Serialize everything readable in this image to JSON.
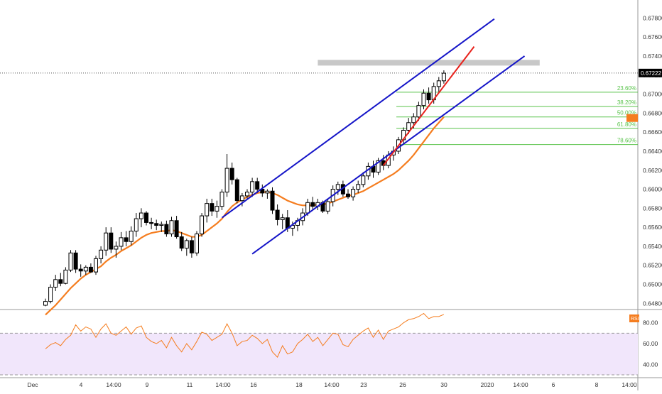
{
  "price_axis": {
    "ticks": [
      "0.67800",
      "0.67600",
      "0.67400",
      "0.67200",
      "0.67000",
      "0.66800",
      "0.66600",
      "0.66400",
      "0.66200",
      "0.66000",
      "0.65800",
      "0.65600",
      "0.65400",
      "0.65200",
      "0.65000",
      "0.64800"
    ],
    "current_price": "0.67222",
    "current_price_value": 0.67222
  },
  "rsi_panel": {
    "badge": "RSI",
    "ticks": [
      "80.00",
      "60.00",
      "40.00"
    ],
    "band_upper": 70,
    "band_lower": 30
  },
  "time_axis": {
    "labels": [
      "Dec",
      "4",
      "14:00",
      "9",
      "11",
      "14:00",
      "16",
      "18",
      "14:00",
      "23",
      "26",
      "30",
      "2020",
      "14:00",
      "6",
      "8",
      "14:00"
    ]
  },
  "fib_levels": [
    {
      "label": "23.60%",
      "value": 0.6702
    },
    {
      "label": "38.20%",
      "value": 0.6687
    },
    {
      "label": "50.00%",
      "value": 0.6676
    },
    {
      "label": "61.80%",
      "value": 0.6664
    },
    {
      "label": "78.60%",
      "value": 0.6647
    }
  ],
  "colors": {
    "channel": "#1515c8",
    "steep_trend": "#e8221c",
    "moving_average": "#f57d1f",
    "rsi_line": "#f57d1f",
    "rsi_band_fill": "#f1e6fb",
    "fib_line": "#58c34a",
    "resistance_zone": "#c8c8c8",
    "candle": "#000000",
    "price_label_bg": "#000000",
    "rsi_badge_bg": "#f57d1f"
  },
  "chart_data": {
    "type": "candlestick",
    "price_ylim": [
      0.6478,
      0.679
    ],
    "rsi_ylim": [
      30,
      90
    ],
    "candles": [
      [
        0.6478,
        0.6485,
        0.6477,
        0.6482
      ],
      [
        0.6482,
        0.65,
        0.648,
        0.6497
      ],
      [
        0.6497,
        0.651,
        0.6493,
        0.6505
      ],
      [
        0.6505,
        0.6512,
        0.6498,
        0.6501
      ],
      [
        0.6501,
        0.6518,
        0.65,
        0.6515
      ],
      [
        0.6515,
        0.6536,
        0.6513,
        0.6533
      ],
      [
        0.6533,
        0.6536,
        0.6512,
        0.6516
      ],
      [
        0.6516,
        0.6521,
        0.6508,
        0.6514
      ],
      [
        0.6514,
        0.652,
        0.651,
        0.6518
      ],
      [
        0.6518,
        0.6522,
        0.6512,
        0.6513
      ],
      [
        0.6513,
        0.653,
        0.651,
        0.6527
      ],
      [
        0.6527,
        0.654,
        0.6522,
        0.6536
      ],
      [
        0.6536,
        0.656,
        0.653,
        0.6554
      ],
      [
        0.6554,
        0.656,
        0.6533,
        0.6537
      ],
      [
        0.6537,
        0.6545,
        0.6528,
        0.654
      ],
      [
        0.654,
        0.6555,
        0.6536,
        0.6549
      ],
      [
        0.6549,
        0.6556,
        0.654,
        0.6545
      ],
      [
        0.6545,
        0.6561,
        0.6541,
        0.6556
      ],
      [
        0.6556,
        0.6575,
        0.655,
        0.6569
      ],
      [
        0.6569,
        0.658,
        0.656,
        0.6575
      ],
      [
        0.6575,
        0.6577,
        0.6562,
        0.6565
      ],
      [
        0.6565,
        0.657,
        0.6558,
        0.6564
      ],
      [
        0.6564,
        0.6568,
        0.6557,
        0.6562
      ],
      [
        0.6562,
        0.6566,
        0.6555,
        0.6563
      ],
      [
        0.6563,
        0.6567,
        0.655,
        0.6553
      ],
      [
        0.6553,
        0.6571,
        0.655,
        0.6567
      ],
      [
        0.6567,
        0.6572,
        0.6548,
        0.655
      ],
      [
        0.655,
        0.6555,
        0.6535,
        0.6538
      ],
      [
        0.6538,
        0.6548,
        0.653,
        0.6546
      ],
      [
        0.6546,
        0.655,
        0.6528,
        0.6533
      ],
      [
        0.6533,
        0.6556,
        0.653,
        0.6553
      ],
      [
        0.6553,
        0.6575,
        0.655,
        0.6572
      ],
      [
        0.6572,
        0.659,
        0.6565,
        0.6585
      ],
      [
        0.6585,
        0.659,
        0.6572,
        0.6577
      ],
      [
        0.6577,
        0.6588,
        0.657,
        0.6582
      ],
      [
        0.6582,
        0.66,
        0.6578,
        0.6597
      ],
      [
        0.6597,
        0.6637,
        0.6592,
        0.6622
      ],
      [
        0.6622,
        0.6628,
        0.6605,
        0.661
      ],
      [
        0.661,
        0.6612,
        0.6585,
        0.6588
      ],
      [
        0.6588,
        0.6596,
        0.6582,
        0.6593
      ],
      [
        0.6593,
        0.66,
        0.659,
        0.6597
      ],
      [
        0.6597,
        0.6612,
        0.6592,
        0.6608
      ],
      [
        0.6608,
        0.6612,
        0.6596,
        0.66
      ],
      [
        0.66,
        0.6605,
        0.6592,
        0.6596
      ],
      [
        0.6596,
        0.66,
        0.659,
        0.6598
      ],
      [
        0.6598,
        0.6602,
        0.6574,
        0.6578
      ],
      [
        0.6578,
        0.6584,
        0.6562,
        0.6568
      ],
      [
        0.6568,
        0.6574,
        0.6558,
        0.657
      ],
      [
        0.657,
        0.6578,
        0.6555,
        0.6559
      ],
      [
        0.6559,
        0.6566,
        0.6551,
        0.6562
      ],
      [
        0.6562,
        0.657,
        0.6556,
        0.6567
      ],
      [
        0.6567,
        0.658,
        0.6562,
        0.6575
      ],
      [
        0.6575,
        0.659,
        0.6572,
        0.6586
      ],
      [
        0.6586,
        0.6592,
        0.6578,
        0.6582
      ],
      [
        0.6582,
        0.659,
        0.6578,
        0.6586
      ],
      [
        0.6586,
        0.6588,
        0.6575,
        0.6577
      ],
      [
        0.6577,
        0.659,
        0.6574,
        0.6587
      ],
      [
        0.6587,
        0.6604,
        0.6582,
        0.66
      ],
      [
        0.66,
        0.6608,
        0.6594,
        0.6605
      ],
      [
        0.6605,
        0.6609,
        0.6592,
        0.6595
      ],
      [
        0.6595,
        0.66,
        0.659,
        0.6592
      ],
      [
        0.6592,
        0.6603,
        0.6588,
        0.66
      ],
      [
        0.66,
        0.6609,
        0.6596,
        0.6605
      ],
      [
        0.6605,
        0.6618,
        0.6602,
        0.6614
      ],
      [
        0.6614,
        0.6628,
        0.661,
        0.6624
      ],
      [
        0.6624,
        0.663,
        0.6612,
        0.6618
      ],
      [
        0.6618,
        0.6633,
        0.6615,
        0.663
      ],
      [
        0.663,
        0.6636,
        0.662,
        0.6625
      ],
      [
        0.6625,
        0.664,
        0.6622,
        0.6636
      ],
      [
        0.6636,
        0.6645,
        0.663,
        0.664
      ],
      [
        0.664,
        0.6655,
        0.6637,
        0.6652
      ],
      [
        0.6652,
        0.6665,
        0.6648,
        0.6662
      ],
      [
        0.6662,
        0.6675,
        0.6658,
        0.667
      ],
      [
        0.667,
        0.668,
        0.6664,
        0.6676
      ],
      [
        0.6676,
        0.6692,
        0.6672,
        0.6688
      ],
      [
        0.6688,
        0.6705,
        0.6684,
        0.6701
      ],
      [
        0.6701,
        0.6707,
        0.669,
        0.6694
      ],
      [
        0.6694,
        0.6712,
        0.669,
        0.6708
      ],
      [
        0.6708,
        0.6718,
        0.6702,
        0.6714
      ],
      [
        0.6714,
        0.6725,
        0.6711,
        0.6722
      ]
    ],
    "moving_average": [
      0.6468,
      0.6473,
      0.6478,
      0.6484,
      0.649,
      0.6496,
      0.6501,
      0.6506,
      0.651,
      0.6513,
      0.6516,
      0.6519,
      0.6524,
      0.6528,
      0.6531,
      0.6535,
      0.6538,
      0.6541,
      0.6545,
      0.6549,
      0.6552,
      0.6554,
      0.6555,
      0.6556,
      0.6556,
      0.6557,
      0.6556,
      0.6554,
      0.6552,
      0.655,
      0.655,
      0.6552,
      0.6556,
      0.656,
      0.6564,
      0.6569,
      0.6576,
      0.6582,
      0.6586,
      0.6589,
      0.6592,
      0.6594,
      0.6596,
      0.6597,
      0.6597,
      0.6596,
      0.6594,
      0.6591,
      0.6588,
      0.6586,
      0.6584,
      0.6583,
      0.6583,
      0.6583,
      0.6584,
      0.6584,
      0.6585,
      0.6587,
      0.6589,
      0.6591,
      0.6593,
      0.6594,
      0.6596,
      0.6598,
      0.6601,
      0.6604,
      0.6607,
      0.661,
      0.6613,
      0.6616,
      0.662,
      0.6625,
      0.663,
      0.6636,
      0.6643,
      0.665,
      0.6657,
      0.6664,
      0.667,
      0.6676
    ],
    "rsi": [
      55,
      59,
      61,
      58,
      64,
      68,
      78,
      72,
      76,
      74,
      66,
      74,
      79,
      70,
      68,
      72,
      76,
      69,
      75,
      77,
      66,
      62,
      60,
      63,
      56,
      66,
      58,
      52,
      60,
      54,
      62,
      71,
      69,
      63,
      66,
      69,
      79,
      70,
      58,
      62,
      63,
      68,
      65,
      60,
      64,
      52,
      47,
      58,
      50,
      52,
      60,
      64,
      69,
      62,
      66,
      58,
      64,
      70,
      69,
      59,
      57,
      64,
      68,
      72,
      75,
      66,
      73,
      64,
      72,
      74,
      76,
      80,
      83,
      84,
      86,
      89,
      84,
      86,
      86,
      88
    ],
    "channel_upper": {
      "from": [
        35,
        0.657
      ],
      "to": [
        89,
        0.6779
      ]
    },
    "channel_lower": {
      "from": [
        41,
        0.6532
      ],
      "to": [
        95,
        0.674
      ]
    },
    "steep_trend": {
      "from": [
        67,
        0.6625
      ],
      "to": [
        85,
        0.675
      ]
    },
    "resistance_zone": {
      "x": [
        54,
        98
      ],
      "y": [
        0.673,
        0.6736
      ]
    }
  }
}
